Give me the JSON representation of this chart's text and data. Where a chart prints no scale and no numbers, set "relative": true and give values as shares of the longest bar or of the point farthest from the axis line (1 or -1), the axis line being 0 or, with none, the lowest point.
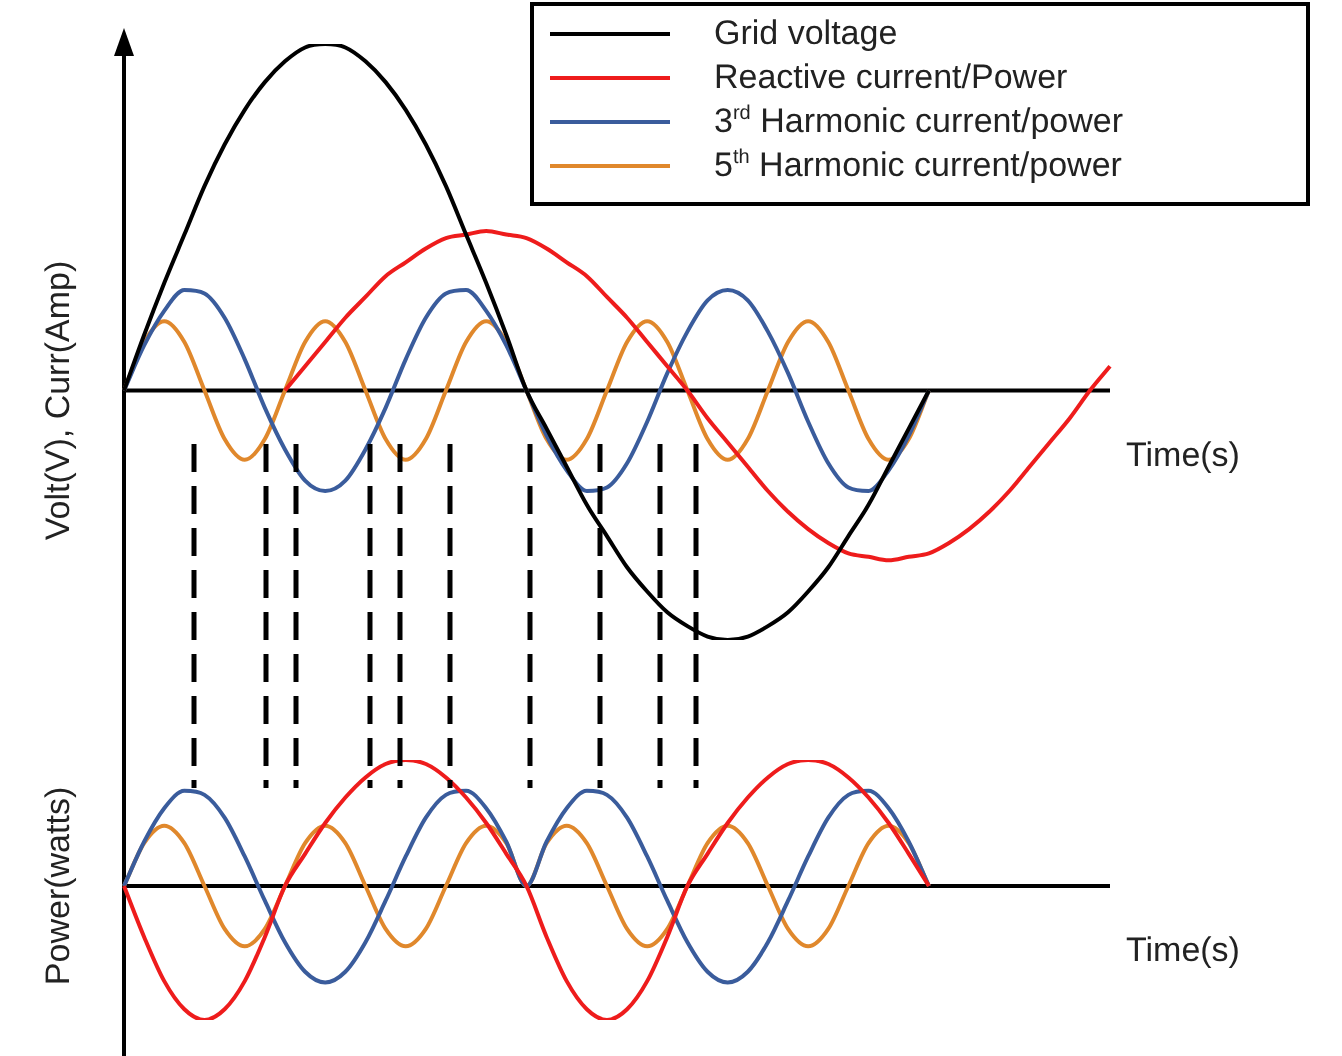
{
  "chart_data": [
    {
      "type": "line",
      "relative": true,
      "ylabel": "Volt(V), Curr(Amp)",
      "xlabel": "Time(s)",
      "legend": "top right",
      "marker": "none",
      "categories": [
        null,
        null,
        null,
        null,
        null,
        null,
        null,
        null,
        null,
        null,
        null,
        null,
        null,
        null,
        null,
        null,
        null,
        null,
        null,
        null,
        null,
        null,
        null,
        null,
        null,
        null,
        null,
        null,
        null,
        null,
        null,
        null,
        null,
        null,
        null,
        null,
        null,
        null,
        null,
        null,
        null,
        null,
        null,
        null,
        null,
        null,
        null,
        null,
        null,
        null
      ],
      "series": [
        {
          "name": "Grid voltage",
          "color": "#000000",
          "values": [
            0,
            0.16,
            0.31,
            0.45,
            0.59,
            0.71,
            0.81,
            0.89,
            0.95,
            0.99,
            1,
            0.99,
            0.95,
            0.89,
            0.81,
            0.71,
            0.59,
            0.45,
            0.31,
            0.16,
            0,
            -0.11,
            -0.22,
            -0.33,
            -0.42,
            -0.51,
            -0.58,
            -0.64,
            -0.68,
            -0.71,
            -0.72,
            -0.71,
            -0.68,
            -0.64,
            -0.58,
            -0.51,
            -0.42,
            -0.33,
            -0.22,
            -0.11,
            0,
            null,
            null,
            null,
            null,
            null,
            null,
            null,
            null,
            null
          ]
        },
        {
          "name": "Reactive current/Power",
          "color": "#ee1c1c",
          "values": [
            null,
            null,
            null,
            null,
            null,
            null,
            null,
            null,
            0,
            0.07,
            0.14,
            0.21,
            0.27,
            0.33,
            0.37,
            0.41,
            0.44,
            0.45,
            0.46,
            0.45,
            0.44,
            0.41,
            0.37,
            0.33,
            0.27,
            0.21,
            0.14,
            0.07,
            0,
            -0.08,
            -0.15,
            -0.22,
            -0.29,
            -0.35,
            -0.4,
            -0.44,
            -0.47,
            -0.48,
            -0.49,
            -0.48,
            -0.47,
            -0.44,
            -0.4,
            -0.35,
            -0.29,
            -0.22,
            -0.15,
            -0.08,
            0,
            0.07
          ]
        },
        {
          "name": "3$^{rd}$ Harmonic current/power",
          "color": "#3a5c9c",
          "values": [
            0,
            0.13,
            0.23,
            0.29,
            0.28,
            0.21,
            0.09,
            -0.05,
            -0.17,
            -0.26,
            -0.29,
            -0.26,
            -0.17,
            -0.05,
            0.09,
            0.21,
            0.28,
            0.29,
            0.23,
            0.13,
            0,
            -0.13,
            -0.23,
            -0.29,
            -0.28,
            -0.21,
            -0.09,
            0.05,
            0.17,
            0.26,
            0.29,
            0.26,
            0.17,
            0.05,
            -0.09,
            -0.21,
            -0.28,
            -0.29,
            -0.23,
            -0.13,
            0,
            null,
            null,
            null,
            null,
            null,
            null,
            null,
            null,
            null
          ]
        },
        {
          "name": "5$^{th}$ Harmonic current/power",
          "color": "#e0882c",
          "values": [
            0,
            0.14,
            0.2,
            0.14,
            0,
            -0.14,
            -0.2,
            -0.14,
            0,
            0.14,
            0.2,
            0.14,
            0,
            -0.14,
            -0.2,
            -0.14,
            0,
            0.14,
            0.2,
            0.14,
            0,
            -0.14,
            -0.2,
            -0.14,
            0,
            0.14,
            0.2,
            0.14,
            0,
            -0.14,
            -0.2,
            -0.14,
            0,
            0.14,
            0.2,
            0.14,
            0,
            -0.14,
            -0.2,
            -0.14,
            0,
            null,
            null,
            null,
            null,
            null,
            null,
            null,
            null,
            null
          ]
        }
      ]
    },
    {
      "type": "line",
      "relative": true,
      "ylabel": "Power(watts)",
      "xlabel": "Time(s)",
      "marker": "none",
      "categories": [
        null,
        null,
        null,
        null,
        null,
        null,
        null,
        null,
        null,
        null,
        null,
        null,
        null,
        null,
        null,
        null,
        null,
        null,
        null,
        null,
        null,
        null,
        null,
        null,
        null,
        null,
        null,
        null,
        null,
        null,
        null,
        null,
        null,
        null,
        null,
        null,
        null,
        null,
        null,
        null,
        null,
        null,
        null,
        null,
        null,
        null,
        null,
        null,
        null,
        null
      ],
      "series": [
        {
          "color": "#ee1c1c",
          "values": [
            0,
            -0.38,
            -0.71,
            -0.92,
            -1,
            -0.92,
            -0.71,
            -0.38,
            0,
            0.24,
            0.47,
            0.66,
            0.81,
            0.91,
            0.94,
            0.91,
            0.81,
            0.66,
            0.47,
            0.24,
            0,
            -0.38,
            -0.71,
            -0.92,
            -1,
            -0.92,
            -0.71,
            -0.38,
            0,
            0.24,
            0.47,
            0.66,
            0.81,
            0.91,
            0.94,
            0.91,
            0.81,
            0.66,
            0.47,
            0.24,
            0,
            null,
            null,
            null,
            null,
            null,
            null,
            null,
            null,
            null
          ]
        },
        {
          "color": "#3a5c9c",
          "values": [
            0,
            0.33,
            0.58,
            0.71,
            0.68,
            0.51,
            0.22,
            -0.11,
            -0.42,
            -0.64,
            -0.72,
            -0.64,
            -0.42,
            -0.11,
            0.22,
            0.51,
            0.68,
            0.71,
            0.58,
            0.33,
            0,
            0.33,
            0.58,
            0.71,
            0.68,
            0.51,
            0.22,
            -0.11,
            -0.42,
            -0.64,
            -0.72,
            -0.64,
            -0.42,
            -0.11,
            0.22,
            0.51,
            0.68,
            0.71,
            0.58,
            0.33,
            0,
            null,
            null,
            null,
            null,
            null,
            null,
            null,
            null,
            null
          ]
        },
        {
          "color": "#e0882c",
          "values": [
            0,
            0.32,
            0.45,
            0.32,
            0,
            -0.32,
            -0.45,
            -0.32,
            0,
            0.32,
            0.45,
            0.32,
            0,
            -0.32,
            -0.45,
            -0.32,
            0,
            0.32,
            0.45,
            0.32,
            0,
            0.32,
            0.45,
            0.32,
            0,
            -0.32,
            -0.45,
            -0.32,
            0,
            0.32,
            0.45,
            0.32,
            0,
            -0.32,
            -0.45,
            -0.32,
            0,
            0.32,
            0.45,
            0.32,
            0,
            null,
            null,
            null,
            null,
            null,
            null,
            null,
            null,
            null
          ]
        }
      ]
    }
  ]
}
